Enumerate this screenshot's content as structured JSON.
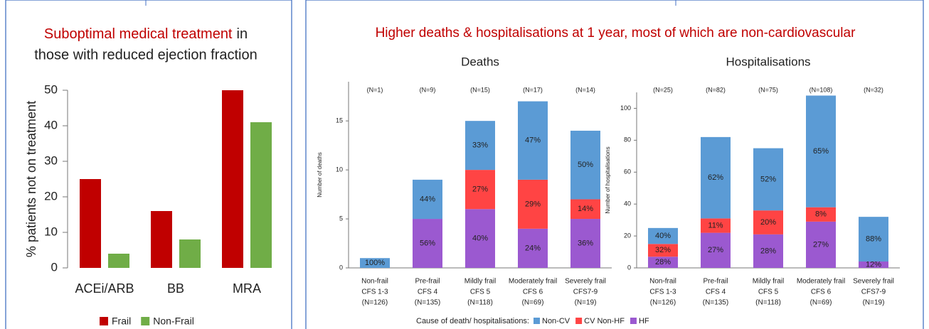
{
  "banner": "Higher deaths & hospitalisations at 1 year, most of which are non-cardiovascular",
  "chart_data": [
    {
      "type": "bar",
      "title": [
        "Suboptimal medical treatment",
        "in",
        "those with reduced ejection fraction"
      ],
      "ylabel": "% patients not on treatment",
      "categories": [
        "ACEi/ARB",
        "BB",
        "MRA"
      ],
      "series": [
        {
          "name": "Frail",
          "color": "#c00000",
          "values": [
            25,
            16,
            50
          ]
        },
        {
          "name": "Non-Frail",
          "color": "#70ad47",
          "values": [
            4,
            8,
            41
          ]
        }
      ],
      "ylim": [
        0,
        50
      ],
      "yticks": [
        0,
        10,
        20,
        30,
        40,
        50
      ],
      "grid": false
    },
    {
      "type": "stacked_bar",
      "title": "Deaths",
      "ylabel": "Number of deaths",
      "categories": [
        [
          "Non-frail",
          "CFS 1-3",
          "(N=126)"
        ],
        [
          "Pre-frail",
          "CFS 4",
          "(N=135)"
        ],
        [
          "Mildly frail",
          "CFS 5",
          "(N=118)"
        ],
        [
          "Moderately frail",
          "CFS 6",
          "(N=69)"
        ],
        [
          "Severely frail",
          "CFS7-9",
          "(N=19)"
        ]
      ],
      "total_labels": [
        "(N=1)",
        "(N=9)",
        "(N=15)",
        "(N=17)",
        "(N=14)"
      ],
      "series": [
        {
          "name": "HF",
          "color": "#9b59d0",
          "values": [
            0,
            5,
            6,
            4,
            5
          ],
          "share_labels": [
            null,
            "56%",
            "40%",
            "24%",
            "36%"
          ]
        },
        {
          "name": "CV Non-HF",
          "color": "#ff4444",
          "values": [
            0,
            0,
            4,
            5,
            2
          ],
          "share_labels": [
            null,
            null,
            "27%",
            "29%",
            "14%"
          ]
        },
        {
          "name": "Non-CV",
          "color": "#5b9bd5",
          "values": [
            1,
            4,
            5,
            8,
            7
          ],
          "share_labels": [
            "100%",
            "44%",
            "33%",
            "47%",
            "50%"
          ]
        }
      ],
      "legend_title": "Cause of death/ hospitalisations:",
      "ylim": [
        0,
        19
      ],
      "yticks": [
        0,
        5,
        10,
        15
      ],
      "grid": false
    },
    {
      "type": "stacked_bar",
      "title": "Hospitalisations",
      "ylabel": "Number of hospitalisations",
      "categories": [
        [
          "Non-frail",
          "CFS 1-3",
          "(N=126)"
        ],
        [
          "Pre-frail",
          "CFS 4",
          "(N=135)"
        ],
        [
          "Mildly frail",
          "CFS 5",
          "(N=118)"
        ],
        [
          "Moderately frail",
          "CFS 6",
          "(N=69)"
        ],
        [
          "Severely frail",
          "CFS7-9",
          "(N=19)"
        ]
      ],
      "total_labels": [
        "(N=25)",
        "(N=82)",
        "(N=75)",
        "(N=108)",
        "(N=32)"
      ],
      "series": [
        {
          "color": "#9b59d0",
          "values": [
            7,
            22,
            21,
            29,
            4
          ],
          "share_labels": [
            "28%",
            "27%",
            "28%",
            "27%",
            "12%"
          ]
        },
        {
          "color": "#ff4444",
          "values": [
            8,
            9,
            15,
            9,
            0
          ],
          "share_labels": [
            "32%",
            "11%",
            "20%",
            "8%",
            null
          ]
        },
        {
          "color": "#5b9bd5",
          "values": [
            10,
            51,
            39,
            70,
            28
          ],
          "share_labels": [
            "40%",
            "62%",
            "52%",
            "65%",
            "88%"
          ]
        }
      ],
      "ylim": [
        0,
        110
      ],
      "yticks": [
        0,
        20,
        40,
        60,
        80,
        100
      ],
      "grid": false
    }
  ]
}
